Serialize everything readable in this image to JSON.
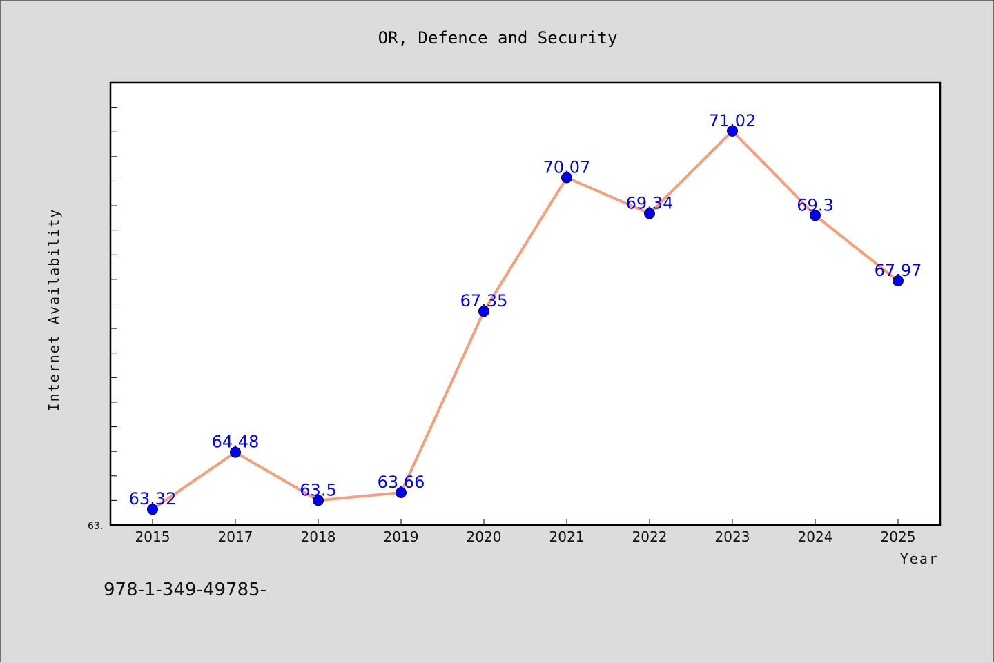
{
  "chart_data": {
    "type": "line",
    "title": "OR, Defence and Security",
    "xlabel": "Year",
    "ylabel": "Internet Availability",
    "categories": [
      "2015",
      "2017",
      "2018",
      "2019",
      "2020",
      "2021",
      "2022",
      "2023",
      "2024",
      "2025"
    ],
    "series": [
      {
        "values": [
          63.32,
          64.48,
          63.5,
          63.66,
          67.35,
          70.07,
          69.34,
          71.02,
          69.3,
          67.97
        ],
        "data_labels": [
          "63.32",
          "64.48",
          "63.5",
          "63.66",
          "67.35",
          "70.07",
          "69.34",
          "71.02",
          "69.3",
          "67.97"
        ]
      }
    ],
    "ylim": [
      63.0,
      72.0
    ],
    "y_min_label": "63.",
    "grid": false,
    "colors": {
      "line": "#f4a07c",
      "marker": "#0000ee",
      "data_label": "#0000ee",
      "plot_background": "#ffffff",
      "figure_background": "#dcdcdc"
    }
  },
  "footer": {
    "text": "978-1-349-49785-"
  }
}
